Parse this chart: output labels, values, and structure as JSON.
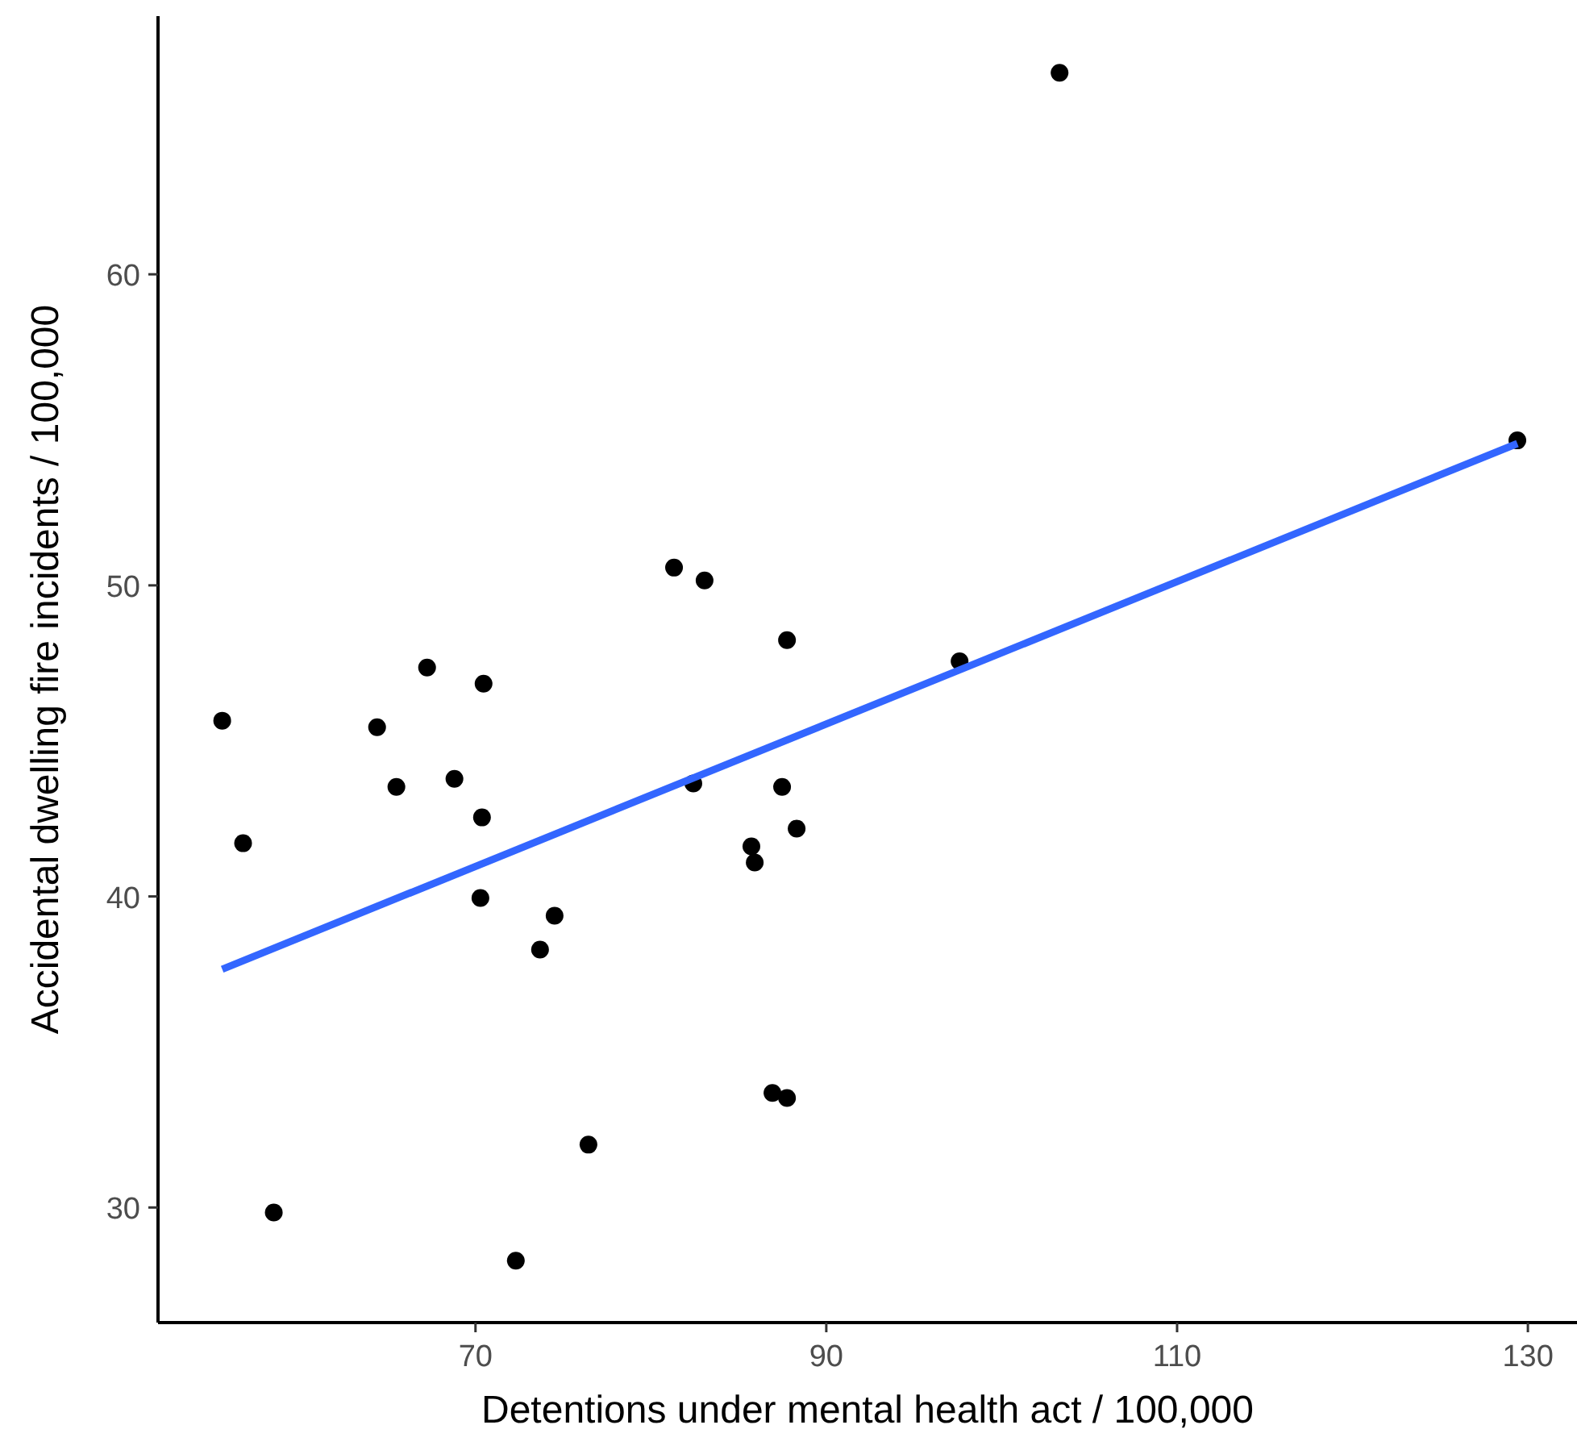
{
  "chart_data": {
    "type": "scatter",
    "xlabel": "Detentions under mental health act / 100,000",
    "ylabel": "Accidental dwelling fire incidents / 100,000",
    "xlim": [
      51.9,
      132.8
    ],
    "ylim": [
      26.3,
      68.3
    ],
    "xticks": [
      70,
      90,
      110,
      130
    ],
    "yticks": [
      30,
      40,
      50,
      60
    ],
    "marker": "circle",
    "series": [
      {
        "type": "scatter",
        "color": "#000000",
        "x": [
          55.56,
          56.75,
          58.5,
          64.39,
          65.49,
          67.24,
          68.8,
          70.46,
          70.37,
          70.28,
          72.3,
          73.68,
          74.51,
          76.44,
          81.32,
          83.06,
          82.42,
          85.73,
          85.92,
          86.93,
          87.76,
          87.48,
          87.76,
          88.31,
          97.6,
          103.3,
          129.4
        ],
        "values": [
          45.65,
          41.71,
          29.84,
          45.44,
          43.52,
          47.36,
          43.78,
          46.84,
          42.54,
          39.95,
          28.29,
          38.29,
          39.38,
          32.02,
          50.57,
          50.16,
          43.63,
          41.61,
          41.09,
          33.68,
          33.52,
          43.52,
          48.24,
          42.18,
          47.56,
          66.48,
          54.66
        ]
      },
      {
        "type": "line",
        "color": "#3366ff",
        "marker": "none",
        "x": [
          55.56,
          129.4
        ],
        "values": [
          37.66,
          54.56
        ]
      }
    ]
  }
}
